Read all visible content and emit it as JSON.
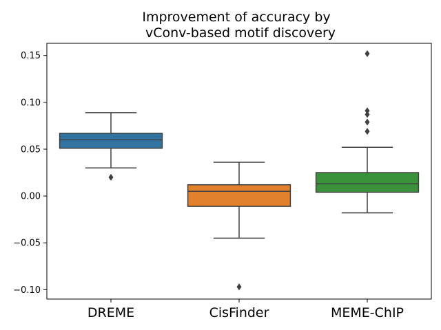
{
  "chart_data": {
    "type": "box",
    "title_lines": [
      "Improvement of accuracy by",
      "vConv-based motif discovery"
    ],
    "xlabel": "",
    "ylabel": "",
    "ylim": [
      -0.11,
      0.163
    ],
    "yticks": [
      0.15,
      0.1,
      0.05,
      0.0,
      -0.05,
      -0.1
    ],
    "ytick_labels": [
      "0.15",
      "0.10",
      "0.05",
      "0.00",
      "−0.05",
      "−0.10"
    ],
    "grid": false,
    "categories": [
      "DREME",
      "CisFinder",
      "MEME-ChIP"
    ],
    "boxes": [
      {
        "name": "DREME",
        "color": "#3274a1",
        "whisker_low": 0.03,
        "q1": 0.051,
        "median": 0.06,
        "q3": 0.067,
        "whisker_high": 0.089,
        "outliers": [
          0.02
        ]
      },
      {
        "name": "CisFinder",
        "color": "#e1812c",
        "whisker_low": -0.045,
        "q1": -0.011,
        "median": 0.005,
        "q3": 0.012,
        "whisker_high": 0.036,
        "outliers": [
          -0.097
        ]
      },
      {
        "name": "MEME-ChIP",
        "color": "#3a923a",
        "whisker_low": -0.018,
        "q1": 0.004,
        "median": 0.013,
        "q3": 0.025,
        "whisker_high": 0.052,
        "outliers": [
          0.152,
          0.091,
          0.087,
          0.079,
          0.069
        ]
      }
    ]
  }
}
